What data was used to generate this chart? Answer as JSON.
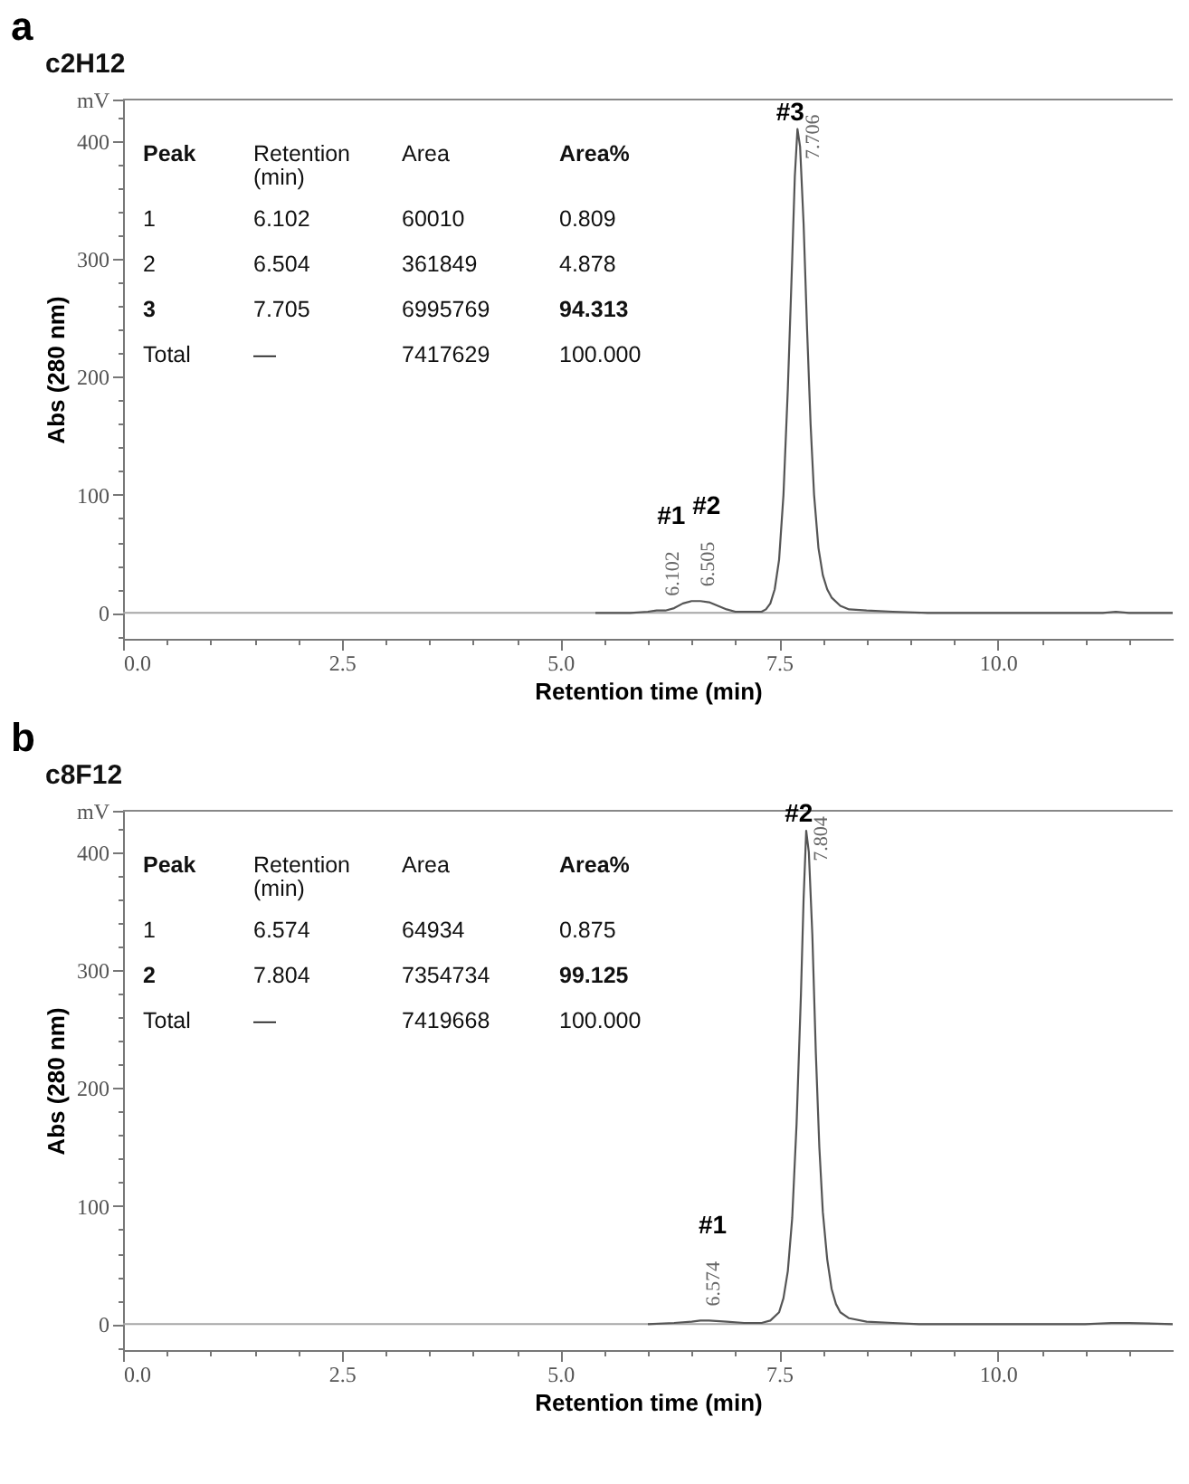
{
  "chart_data": [
    {
      "type": "line",
      "title": "c2H12",
      "xlabel": "Retention time (min)",
      "ylabel": "Abs (280 nm)",
      "xlim": [
        0,
        12
      ],
      "ylim": [
        -22,
        435
      ],
      "xticks": [
        {
          "value": 0,
          "label": "0.0"
        },
        {
          "value": 0.5,
          "label": null
        },
        {
          "value": 1,
          "label": null
        },
        {
          "value": 1.5,
          "label": null
        },
        {
          "value": 2,
          "label": null
        },
        {
          "value": 2.5,
          "label": "2.5"
        },
        {
          "value": 3,
          "label": null
        },
        {
          "value": 3.5,
          "label": null
        },
        {
          "value": 4,
          "label": null
        },
        {
          "value": 4.5,
          "label": null
        },
        {
          "value": 5,
          "label": "5.0"
        },
        {
          "value": 5.5,
          "label": null
        },
        {
          "value": 6,
          "label": null
        },
        {
          "value": 6.5,
          "label": null
        },
        {
          "value": 7,
          "label": null
        },
        {
          "value": 7.5,
          "label": "7.5"
        },
        {
          "value": 8,
          "label": null
        },
        {
          "value": 8.5,
          "label": null
        },
        {
          "value": 9,
          "label": null
        },
        {
          "value": 9.5,
          "label": null
        },
        {
          "value": 10,
          "label": "10.0"
        },
        {
          "value": 10.5,
          "label": null
        },
        {
          "value": 11,
          "label": null
        },
        {
          "value": 11.5,
          "label": null
        }
      ],
      "yticks": [
        {
          "value": -20,
          "label": null
        },
        0,
        {
          "value": 20,
          "label": null
        },
        {
          "value": 40,
          "label": null
        },
        {
          "value": 60,
          "label": null
        },
        {
          "value": 80,
          "label": null
        },
        100,
        {
          "value": 120,
          "label": null
        },
        {
          "value": 140,
          "label": null
        },
        {
          "value": 160,
          "label": null
        },
        {
          "value": 180,
          "label": null
        },
        200,
        {
          "value": 220,
          "label": null
        },
        {
          "value": 240,
          "label": null
        },
        {
          "value": 260,
          "label": null
        },
        {
          "value": 280,
          "label": null
        },
        300,
        {
          "value": 320,
          "label": null
        },
        {
          "value": 340,
          "label": null
        },
        {
          "value": 360,
          "label": null
        },
        {
          "value": 380,
          "label": null
        },
        400,
        {
          "value": 420,
          "label": null
        },
        {
          "value": 435,
          "label": "mV"
        }
      ],
      "ref_lines": [
        {
          "axis": "y",
          "value": 0,
          "color": "#a6a6a6"
        }
      ],
      "series": [
        {
          "color": "#555555",
          "x": [
            5.4,
            5.8,
            6.0,
            6.1,
            6.2,
            6.3,
            6.4,
            6.5,
            6.6,
            6.7,
            6.8,
            6.9,
            7.0,
            7.1,
            7.2,
            7.3,
            7.35,
            7.4,
            7.45,
            7.5,
            7.55,
            7.6,
            7.65,
            7.68,
            7.71,
            7.74,
            7.78,
            7.82,
            7.86,
            7.9,
            7.95,
            8.0,
            8.05,
            8.1,
            8.2,
            8.3,
            8.5,
            8.8,
            9.2,
            9.7,
            10.5,
            11.2,
            11.35,
            11.5,
            12
          ],
          "values": [
            0,
            0,
            1,
            2,
            2,
            4,
            8,
            10,
            10,
            9,
            6,
            3,
            1,
            1,
            1,
            1,
            3,
            8,
            20,
            45,
            100,
            190,
            300,
            370,
            410,
            395,
            330,
            240,
            160,
            100,
            55,
            32,
            20,
            13,
            6,
            3,
            2,
            1,
            0,
            0,
            0,
            0,
            1,
            0,
            0
          ]
        }
      ],
      "annotations": [
        "a",
        "Peak",
        "Retention (min)",
        "Area",
        "Area%",
        "1",
        "6.102",
        "60010",
        "0.809",
        "2",
        "6.504",
        "361849",
        "4.878",
        "3",
        "7.705",
        "6995769",
        "94.313",
        "Total",
        "—",
        "7417629",
        "100.000",
        "#1",
        "#2",
        "#3",
        {
          "text": "6.102",
          "x": 6.102,
          "y": 2
        },
        {
          "text": "6.505",
          "x": 6.505,
          "y": 10
        },
        {
          "text": "7.706",
          "x": 7.706,
          "y": 410
        }
      ]
    },
    {
      "type": "line",
      "title": "c8F12",
      "xlabel": "Retention time (min)",
      "ylabel": "Abs (280 nm)",
      "xlim": [
        0,
        12
      ],
      "ylim": [
        -22,
        435
      ],
      "xticks": [
        {
          "value": 0,
          "label": "0.0"
        },
        {
          "value": 0.5,
          "label": null
        },
        {
          "value": 1,
          "label": null
        },
        {
          "value": 1.5,
          "label": null
        },
        {
          "value": 2,
          "label": null
        },
        {
          "value": 2.5,
          "label": "2.5"
        },
        {
          "value": 3,
          "label": null
        },
        {
          "value": 3.5,
          "label": null
        },
        {
          "value": 4,
          "label": null
        },
        {
          "value": 4.5,
          "label": null
        },
        {
          "value": 5,
          "label": "5.0"
        },
        {
          "value": 5.5,
          "label": null
        },
        {
          "value": 6,
          "label": null
        },
        {
          "value": 6.5,
          "label": null
        },
        {
          "value": 7,
          "label": null
        },
        {
          "value": 7.5,
          "label": "7.5"
        },
        {
          "value": 8,
          "label": null
        },
        {
          "value": 8.5,
          "label": null
        },
        {
          "value": 9,
          "label": null
        },
        {
          "value": 9.5,
          "label": null
        },
        {
          "value": 10,
          "label": "10.0"
        },
        {
          "value": 10.5,
          "label": null
        },
        {
          "value": 11,
          "label": null
        },
        {
          "value": 11.5,
          "label": null
        }
      ],
      "yticks": [
        {
          "value": -20,
          "label": null
        },
        0,
        {
          "value": 20,
          "label": null
        },
        {
          "value": 40,
          "label": null
        },
        {
          "value": 60,
          "label": null
        },
        {
          "value": 80,
          "label": null
        },
        100,
        {
          "value": 120,
          "label": null
        },
        {
          "value": 140,
          "label": null
        },
        {
          "value": 160,
          "label": null
        },
        {
          "value": 180,
          "label": null
        },
        200,
        {
          "value": 220,
          "label": null
        },
        {
          "value": 240,
          "label": null
        },
        {
          "value": 260,
          "label": null
        },
        {
          "value": 280,
          "label": null
        },
        300,
        {
          "value": 320,
          "label": null
        },
        {
          "value": 340,
          "label": null
        },
        {
          "value": 360,
          "label": null
        },
        {
          "value": 380,
          "label": null
        },
        400,
        {
          "value": 420,
          "label": null
        },
        {
          "value": 435,
          "label": "mV"
        }
      ],
      "ref_lines": [
        {
          "axis": "y",
          "value": 0,
          "color": "#a6a6a6"
        }
      ],
      "series": [
        {
          "color": "#555555",
          "x": [
            6.0,
            6.3,
            6.5,
            6.6,
            6.7,
            6.9,
            7.1,
            7.3,
            7.4,
            7.5,
            7.55,
            7.6,
            7.65,
            7.7,
            7.75,
            7.78,
            7.81,
            7.84,
            7.88,
            7.92,
            7.96,
            8.0,
            8.05,
            8.1,
            8.15,
            8.2,
            8.3,
            8.5,
            8.8,
            9.1,
            10.0,
            11.0,
            11.3,
            11.5,
            12
          ],
          "values": [
            0,
            1,
            2,
            3,
            3,
            2,
            1,
            1,
            3,
            10,
            22,
            45,
            90,
            170,
            280,
            360,
            418,
            400,
            330,
            230,
            150,
            95,
            55,
            30,
            17,
            10,
            5,
            2,
            1,
            0,
            0,
            0,
            1,
            1,
            0
          ]
        }
      ],
      "annotations": [
        "b",
        "Peak",
        "Retention (min)",
        "Area",
        "Area%",
        "1",
        "6.574",
        "64934",
        "0.875",
        "2",
        "7.804",
        "7354734",
        "99.125",
        "Total",
        "—",
        "7419668",
        "100.000",
        "#1",
        "#2",
        {
          "text": "6.574",
          "x": 6.574,
          "y": 3
        },
        {
          "text": "7.804",
          "x": 7.804,
          "y": 418
        }
      ]
    }
  ]
}
